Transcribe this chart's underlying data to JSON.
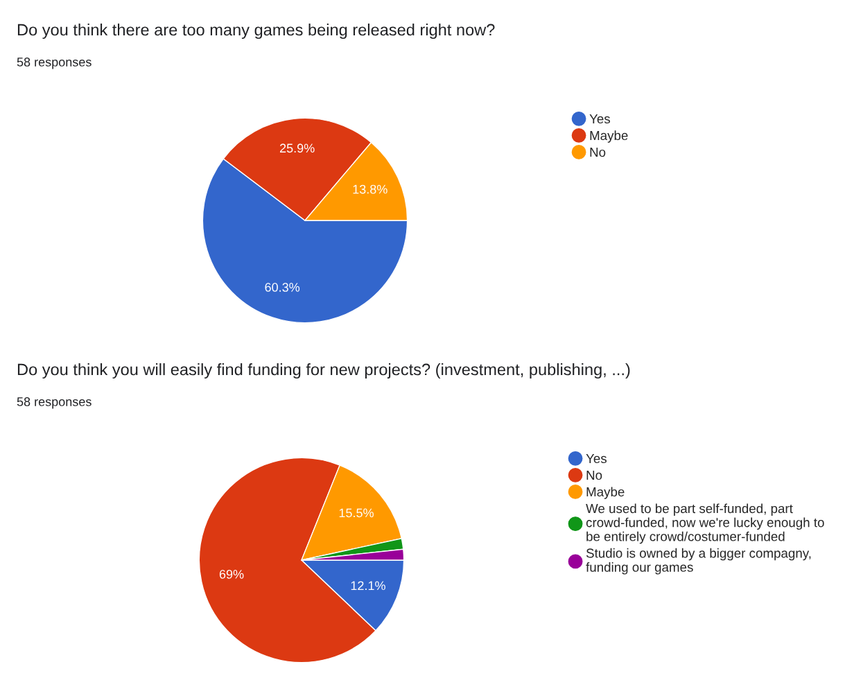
{
  "chart_data": [
    {
      "type": "pie",
      "title": "Do you think there are too many games being released right now?",
      "subtitle": "58 responses",
      "categories": [
        "Yes",
        "Maybe",
        "No"
      ],
      "values": [
        60.3,
        25.9,
        13.8
      ],
      "colors": [
        "#3366cc",
        "#dc3912",
        "#ff9900"
      ],
      "value_labels": [
        "60.3%",
        "25.9%",
        "13.8%"
      ],
      "legend": "right"
    },
    {
      "type": "pie",
      "title": "Do you think you will easily find funding for new projects? (investment, publishing, ...)",
      "subtitle": "58 responses",
      "categories": [
        "Yes",
        "No",
        "Maybe",
        "We used to be part self-funded, part crowd-funded, now we're lucky enough to be entirely crowd/costumer-funded",
        "Studio is owned by a bigger compagny, funding our games"
      ],
      "values": [
        12.1,
        69,
        15.5,
        1.7,
        1.7
      ],
      "colors": [
        "#3366cc",
        "#dc3912",
        "#ff9900",
        "#109618",
        "#990099"
      ],
      "value_labels": [
        "12.1%",
        "69%",
        "15.5%",
        null,
        null
      ],
      "legend": "right"
    }
  ]
}
